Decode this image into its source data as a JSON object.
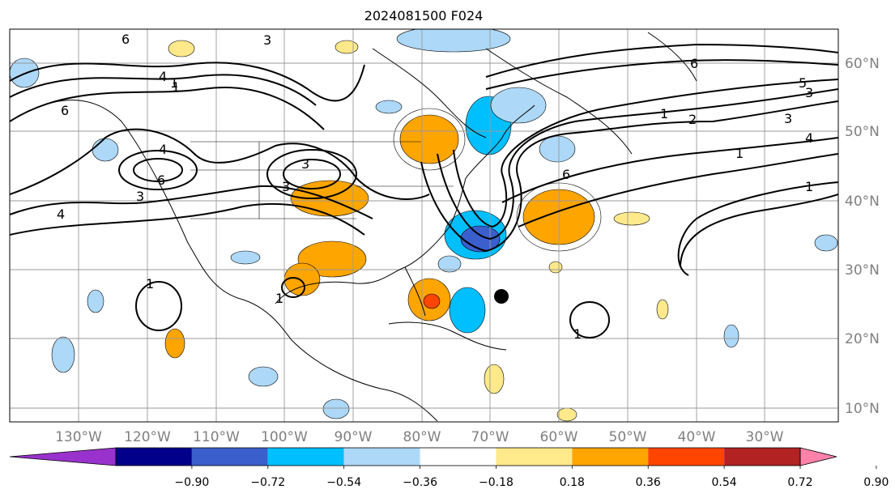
{
  "map": {
    "title": "2024081500 F024",
    "lon_labels": [
      "130°W",
      "120°W",
      "110°W",
      "100°W",
      "90°W",
      "80°W",
      "70°W",
      "60°W",
      "50°W",
      "40°W",
      "30°W"
    ],
    "lat_labels": [
      "60°N",
      "50°N",
      "40°N",
      "30°N",
      "20°N",
      "10°N"
    ],
    "contour_labels": [
      "6",
      "3",
      "4",
      "1",
      "6",
      "4",
      "6",
      "3",
      "4",
      "3",
      "3",
      "1",
      "1",
      "6",
      "5",
      "3",
      "1",
      "2",
      "3",
      "4",
      "1",
      "1",
      "6",
      "1",
      "1"
    ],
    "marker": "storm-center-dot"
  },
  "colorbar": {
    "ticks": [
      "−0.90",
      "−0.72",
      "−0.54",
      "−0.36",
      "−0.18",
      "0.18",
      "0.36",
      "0.54",
      "0.72",
      "0.90"
    ],
    "colors": [
      "#9932cc",
      "#00008b",
      "#3a5fcd",
      "#00bfff",
      "#add8f7",
      "#ffffff",
      "#ffe98a",
      "#ffa500",
      "#ff4500",
      "#b22222",
      "#ff82ab"
    ]
  }
}
